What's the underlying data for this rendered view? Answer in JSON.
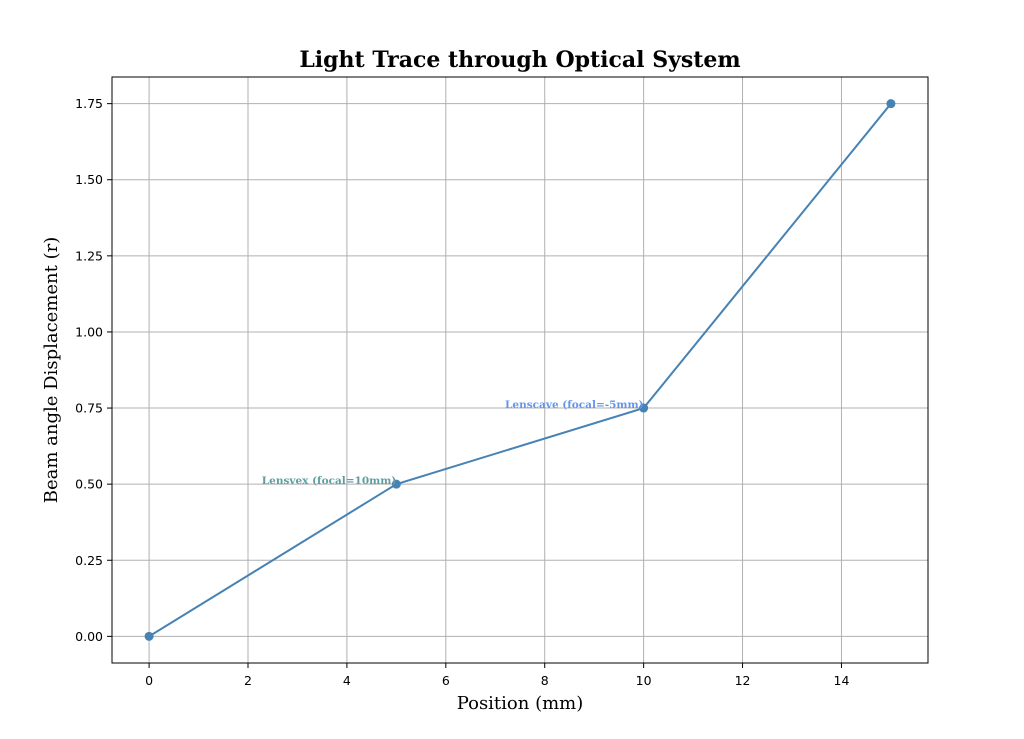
{
  "chart_data": {
    "type": "line",
    "title": "Light Trace through Optical System",
    "xlabel": "Position (mm)",
    "ylabel": "Beam angle Displacement (r)",
    "x": [
      0,
      5,
      10,
      15
    ],
    "series": [
      {
        "values": [
          0.0,
          0.5,
          0.75,
          1.75
        ],
        "color": "#4682b4"
      }
    ],
    "xlim": [
      -0.75,
      15.75
    ],
    "ylim": [
      -0.0875,
      1.8375
    ],
    "xticks": [
      0,
      2,
      4,
      6,
      8,
      10,
      12,
      14
    ],
    "yticks": [
      0.0,
      0.25,
      0.5,
      0.75,
      1.0,
      1.25,
      1.5,
      1.75
    ],
    "xtick_labels": [
      "0",
      "2",
      "4",
      "6",
      "8",
      "10",
      "12",
      "14"
    ],
    "ytick_labels": [
      "0.00",
      "0.25",
      "0.50",
      "0.75",
      "1.00",
      "1.25",
      "1.50",
      "1.75"
    ],
    "grid": true,
    "annotations": [
      {
        "text": "Lensvex (focal=10mm)",
        "x": 5,
        "y": 0.5,
        "color": "#5f9ea0"
      },
      {
        "text": "Lenscave (focal=-5mm)",
        "x": 10,
        "y": 0.75,
        "color": "#6495ed"
      }
    ]
  }
}
